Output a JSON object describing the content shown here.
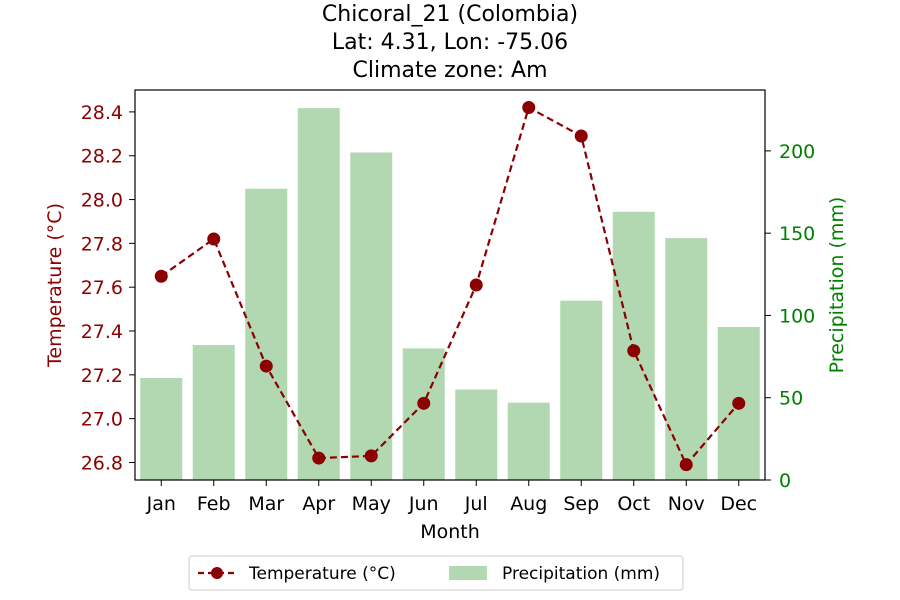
{
  "chart_data": {
    "type": "bar+line",
    "title_lines": [
      "Chicoral_21 (Colombia)",
      "Lat: 4.31, Lon: -75.06",
      "Climate zone: Am"
    ],
    "categories": [
      "Jan",
      "Feb",
      "Mar",
      "Apr",
      "May",
      "Jun",
      "Jul",
      "Aug",
      "Sep",
      "Oct",
      "Nov",
      "Dec"
    ],
    "xlabel": "Month",
    "temperature": {
      "name": "Temperature (°C)",
      "axis_label": "Temperature (°C)",
      "values": [
        27.65,
        27.82,
        27.24,
        26.82,
        26.83,
        27.07,
        27.61,
        28.42,
        28.29,
        27.31,
        26.79,
        27.07
      ],
      "ylim": [
        26.72,
        28.5
      ],
      "ticks": [
        26.8,
        27.0,
        27.2,
        27.4,
        27.6,
        27.8,
        28.0,
        28.2,
        28.4
      ],
      "color": "#8b0000"
    },
    "precipitation": {
      "name": "Precipitation (mm)",
      "axis_label": "Precipitation (mm)",
      "values": [
        62,
        82,
        177,
        226,
        199,
        80,
        55,
        47,
        109,
        163,
        147,
        93
      ],
      "ylim": [
        0,
        237
      ],
      "ticks": [
        0,
        50,
        100,
        150,
        200
      ],
      "color": "#b2d8b2",
      "label_color": "#008000"
    },
    "legend_position": "bottom-center"
  }
}
